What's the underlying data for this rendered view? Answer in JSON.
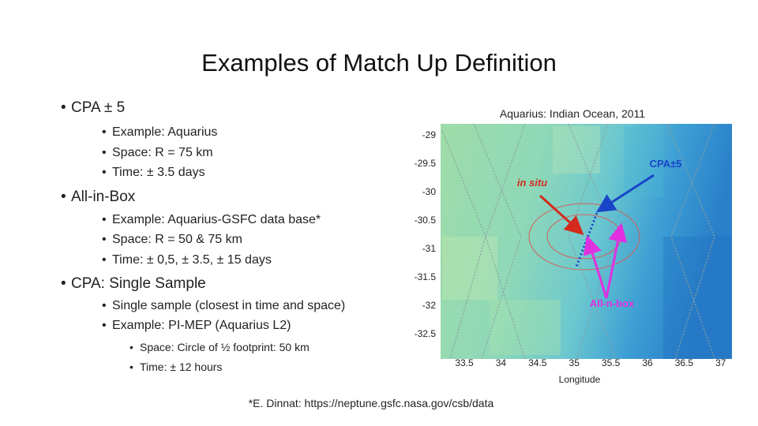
{
  "title": "Examples of Match Up Definition",
  "bullets": [
    {
      "text": "CPA ± 5",
      "items": [
        {
          "text": "Example: Aquarius"
        },
        {
          "text": "Space: R = 75 km"
        },
        {
          "text": "Time: ± 3.5 days"
        }
      ]
    },
    {
      "text": "All-in-Box",
      "items": [
        {
          "text": "Example: Aquarius-GSFC data base*"
        },
        {
          "text": "Space: R = 50 & 75 km"
        },
        {
          "text": "Time: ± 0,5, ± 3.5, ± 15 days"
        }
      ]
    },
    {
      "text": "CPA: Single Sample",
      "items": [
        {
          "text": "Single sample (closest in time and space)"
        },
        {
          "text": "Example: PI-MEP (Aquarius L2)",
          "items": [
            {
              "text": "Space: Circle of ½ footprint: 50 km"
            },
            {
              "text": "Time: ± 12 hours"
            }
          ]
        }
      ]
    }
  ],
  "figure": {
    "title": "Aquarius: Indian Ocean, 2011",
    "y_tick_labels": [
      "-29",
      "-29.5",
      "-30",
      "-30.5",
      "-31",
      "-31.5",
      "-32",
      "-32.5"
    ],
    "x_tick_labels": [
      "33.5",
      "34",
      "34.5",
      "35",
      "35.5",
      "36",
      "36.5",
      "37"
    ],
    "x_label": "Longitude",
    "annotations": {
      "cpa": "CPA±5",
      "in_situ": "in situ",
      "all_in_box": "All-n-box"
    }
  },
  "footnote": "*E. Dinnat: https://neptune.gsfc.nasa.gov/csb/data"
}
